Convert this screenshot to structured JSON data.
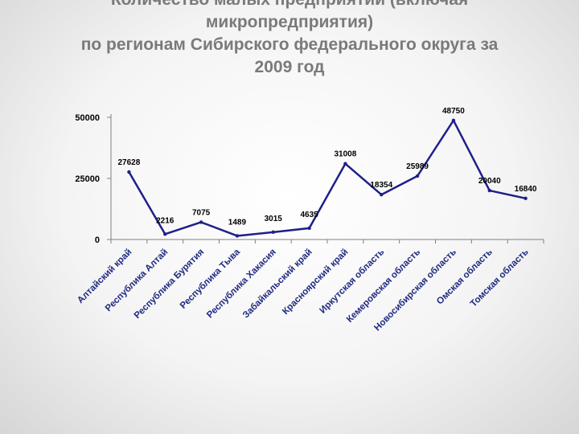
{
  "title_lines": [
    "Количество малых предприятий (включая",
    "микропредприятия)",
    "по регионам Сибирского федерального округа за",
    "2009 год"
  ],
  "colors": {
    "line": "#1f2088",
    "title": "#7a7a7a",
    "category": "#1f2a80"
  },
  "chart_data": {
    "type": "line",
    "title": "Количество малых предприятий (включая микропредприятия) по регионам Сибирского федерального округа за 2009 год",
    "categories": [
      "Алтайский край",
      "Республика Алтай",
      "Республика Бурятия",
      "Республика Тыва",
      "Республика Хакасия",
      "Забайкальский край",
      "Красноярский край",
      "Иркутская область",
      "Кемеровская область",
      "Новосибирская область",
      "Омская область",
      "Томская область"
    ],
    "values": [
      27628,
      2216,
      7075,
      1489,
      3015,
      4635,
      31008,
      18354,
      25989,
      48750,
      20040,
      16840
    ],
    "y_ticks": [
      0,
      25000,
      50000
    ],
    "ylim": [
      0,
      50000
    ],
    "xlabel": "",
    "ylabel": "",
    "grid": false,
    "legend": "none"
  }
}
